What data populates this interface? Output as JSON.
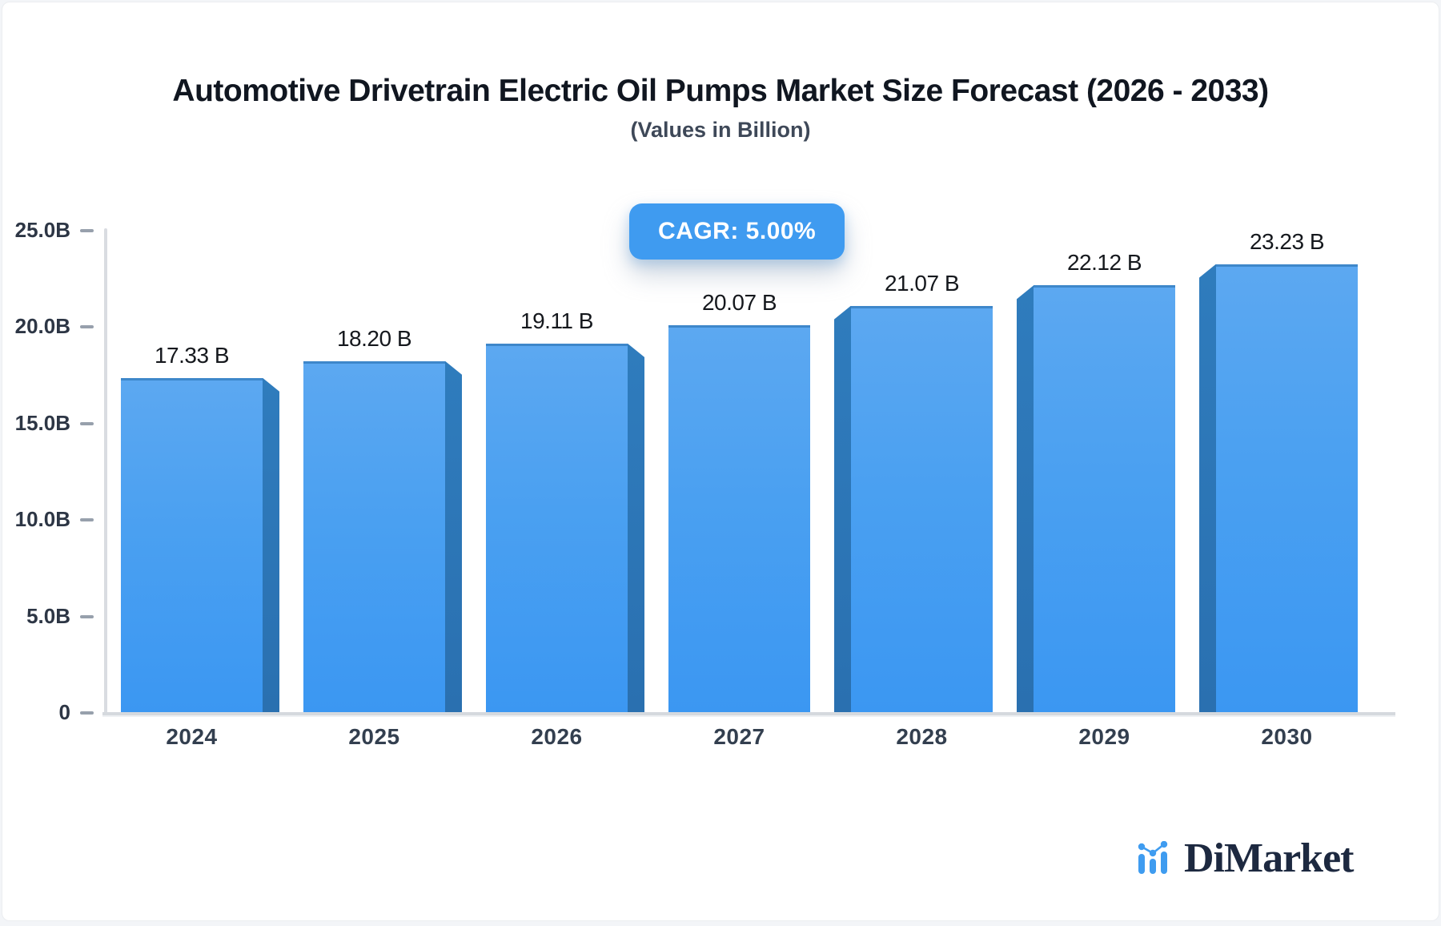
{
  "page": {
    "background": "#f3f5f8",
    "card_background": "#ffffff"
  },
  "header": {
    "title": "Automotive Drivetrain Electric Oil Pumps Market Size Forecast (2026 - 2033)",
    "subtitle": "(Values in Billion)"
  },
  "badge": {
    "label": "CAGR: 5.00%",
    "background": "#3f9bf0",
    "text_color": "#ffffff"
  },
  "chart_data": {
    "type": "bar",
    "title": "Automotive Drivetrain Electric Oil Pumps Market Size Forecast (2026 - 2033)",
    "subtitle": "(Values in Billion)",
    "categories": [
      "2024",
      "2025",
      "2026",
      "2027",
      "2028",
      "2029",
      "2030"
    ],
    "values": [
      17.33,
      18.2,
      19.11,
      20.07,
      21.07,
      22.12,
      23.23
    ],
    "value_labels": [
      "17.33 B",
      "18.20 B",
      "19.11 B",
      "20.07 B",
      "21.07 B",
      "22.12 B",
      "23.23 B"
    ],
    "xlabel": "",
    "ylabel": "",
    "ylim": [
      0,
      25
    ],
    "yticks": [
      {
        "value": 0,
        "label": "0"
      },
      {
        "value": 5,
        "label": "5.0B"
      },
      {
        "value": 10,
        "label": "10.0B"
      },
      {
        "value": 15,
        "label": "15.0B"
      },
      {
        "value": 20,
        "label": "20.0B"
      },
      {
        "value": 25,
        "label": "25.0B"
      }
    ],
    "grid": false,
    "legend": false,
    "style": "3d-bars",
    "colors": {
      "bar_face_top": "#5ca8f1",
      "bar_face_bottom": "#3b97f2",
      "bar_side": "#2c75b6",
      "bar_top_edge": "#3e87ca",
      "axis": "#d9dce1",
      "tick": "#97a0ac",
      "tick_text": "#2d3645",
      "value_text": "#15181d"
    }
  },
  "logo": {
    "text": "DiMarket",
    "icon": "bar-line-chart-icon",
    "icon_color": "#3f9cf0",
    "text_color": "#1d2940"
  }
}
